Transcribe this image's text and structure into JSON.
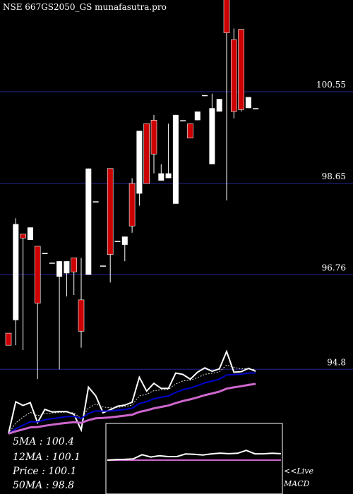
{
  "header": {
    "title": "NSE 667GS2050_GS munafasutra.pro"
  },
  "colors": {
    "background": "#000000",
    "grid": "#1a1a66",
    "bull": "#ffffff",
    "bear": "#cc0000",
    "text": "#ffffff",
    "ema_fast": "#ffffff",
    "ema_slow": "#0000cc",
    "ma50": "#cc66cc",
    "macd_signal": "#cc66cc"
  },
  "chart_data": {
    "type": "candlestick",
    "y_axis_ticks": [
      100.55,
      98.65,
      96.76,
      94.8
    ],
    "ylim": [
      94.8,
      103.5
    ],
    "candles": [
      {
        "o": 95.55,
        "h": 95.55,
        "l": 95.3,
        "c": 95.3
      },
      {
        "o": 95.82,
        "h": 97.93,
        "l": 95.3,
        "c": 97.81
      },
      {
        "o": 97.6,
        "h": 97.6,
        "l": 95.2,
        "c": 97.52
      },
      {
        "o": 97.48,
        "h": 97.74,
        "l": 97.48,
        "c": 97.74
      },
      {
        "o": 97.35,
        "h": 97.35,
        "l": 94.6,
        "c": 96.17
      },
      {
        "o": 97.21,
        "h": 97.21,
        "l": 97.21,
        "c": 97.21
      },
      {
        "o": 97.01,
        "h": 97.01,
        "l": 97.01,
        "c": 97.01
      },
      {
        "o": 96.72,
        "h": 97.04,
        "l": 94.8,
        "c": 97.04
      },
      {
        "o": 96.79,
        "h": 97.04,
        "l": 96.31,
        "c": 97.04
      },
      {
        "o": 97.11,
        "h": 97.11,
        "l": 96.34,
        "c": 96.82
      },
      {
        "o": 96.24,
        "h": 97.11,
        "l": 95.25,
        "c": 95.59
      },
      {
        "o": 96.76,
        "h": 98.96,
        "l": 96.76,
        "c": 98.96
      },
      {
        "o": 98.28,
        "h": 98.28,
        "l": 98.28,
        "c": 98.28
      },
      {
        "o": 96.95,
        "h": 96.95,
        "l": 96.95,
        "c": 96.95
      },
      {
        "o": 98.96,
        "h": 98.96,
        "l": 96.6,
        "c": 97.18
      },
      {
        "o": 97.46,
        "h": 97.46,
        "l": 97.46,
        "c": 97.46
      },
      {
        "o": 97.38,
        "h": 97.55,
        "l": 97.04,
        "c": 97.55
      },
      {
        "o": 98.65,
        "h": 98.76,
        "l": 97.63,
        "c": 97.77
      },
      {
        "o": 98.44,
        "h": 99.74,
        "l": 98.19,
        "c": 99.74
      },
      {
        "o": 99.89,
        "h": 99.89,
        "l": 98.65,
        "c": 98.65
      },
      {
        "o": 99.96,
        "h": 100.07,
        "l": 98.86,
        "c": 99.26
      },
      {
        "o": 98.71,
        "h": 99.05,
        "l": 98.71,
        "c": 98.86
      },
      {
        "o": 98.76,
        "h": 99.89,
        "l": 98.76,
        "c": 98.86
      },
      {
        "o": 98.23,
        "h": 100.07,
        "l": 98.23,
        "c": 100.07
      },
      {
        "o": 99.96,
        "h": 99.96,
        "l": 99.96,
        "c": 99.96
      },
      {
        "o": 99.89,
        "h": 99.89,
        "l": 99.59,
        "c": 99.59
      },
      {
        "o": 99.96,
        "h": 100.14,
        "l": 99.96,
        "c": 100.14
      },
      {
        "o": 100.48,
        "h": 100.48,
        "l": 100.48,
        "c": 100.48
      },
      {
        "o": 99.05,
        "h": 100.51,
        "l": 99.05,
        "c": 100.21
      },
      {
        "o": 100.14,
        "h": 100.4,
        "l": 100.14,
        "c": 100.4
      },
      {
        "o": 103.5,
        "h": 103.5,
        "l": 98.3,
        "c": 101.77
      },
      {
        "o": 101.63,
        "h": 101.86,
        "l": 100.0,
        "c": 100.14
      },
      {
        "o": 101.84,
        "h": 101.84,
        "l": 100.14,
        "c": 100.18
      },
      {
        "o": 100.21,
        "h": 100.44,
        "l": 100.21,
        "c": 100.44
      },
      {
        "o": 100.21,
        "h": 100.21,
        "l": 100.21,
        "c": 100.21
      }
    ]
  },
  "stats": [
    {
      "label": "5MA",
      "value": "100.4"
    },
    {
      "label": "12MA",
      "value": "100.1"
    },
    {
      "label": "Price",
      "value": "100.1"
    },
    {
      "label": "50MA",
      "value": "98.8"
    }
  ],
  "macd_caption": [
    "<<Live",
    "MACD"
  ]
}
